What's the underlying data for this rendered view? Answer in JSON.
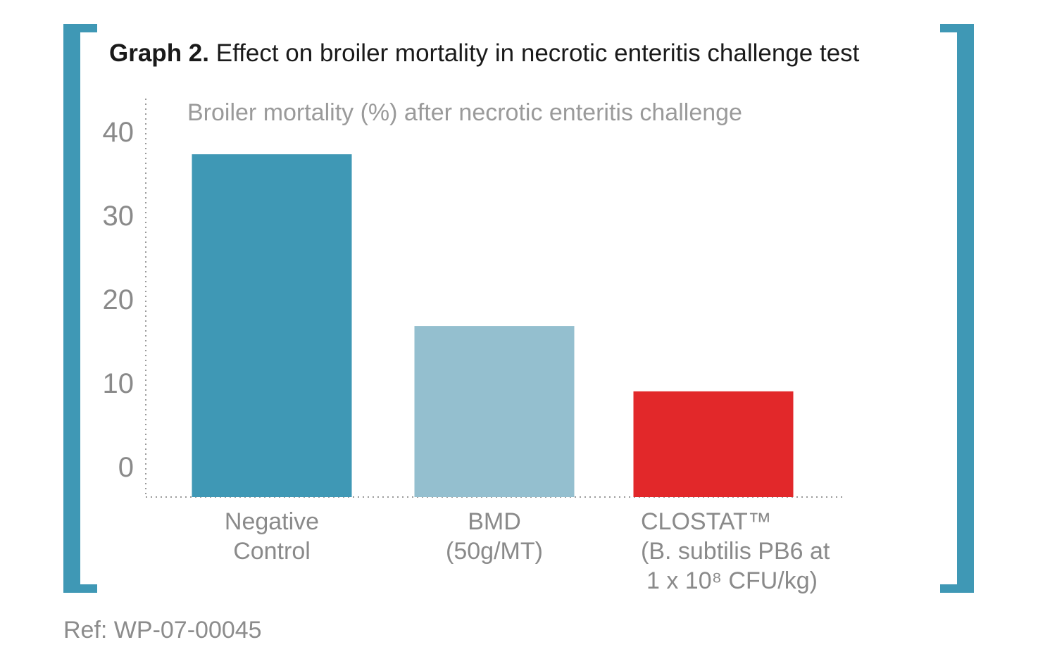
{
  "header": {
    "title_prefix": "Graph 2.",
    "title_rest": "Effect on broiler mortality in necrotic enteritis challenge test"
  },
  "footer": {
    "ref": "Ref: WP-07-00045"
  },
  "colors": {
    "bracket": "#3f98b5",
    "axis": "#9a9a9a"
  },
  "chart_data": {
    "type": "bar",
    "title": "Broiler mortality (%) after necrotic enteritis challenge",
    "ylim": [
      -4,
      40
    ],
    "yticks": [
      0,
      10,
      20,
      30,
      40
    ],
    "ytick_labels": [
      "0",
      "10",
      "20",
      "30",
      "40"
    ],
    "grid": false,
    "categories": [
      {
        "lines": [
          "Negative",
          "Control"
        ],
        "value": 37.3,
        "color": "#3f98b5"
      },
      {
        "lines": [
          "BMD",
          "(50g/MT)"
        ],
        "value": 16.8,
        "color": "#94bfcf"
      },
      {
        "lines": [
          "CLOSTAT™",
          "(B. subtilis PB6 at",
          "1 x 10⁸ CFU/kg)"
        ],
        "value": 9.0,
        "color": "#e2282a"
      }
    ]
  }
}
